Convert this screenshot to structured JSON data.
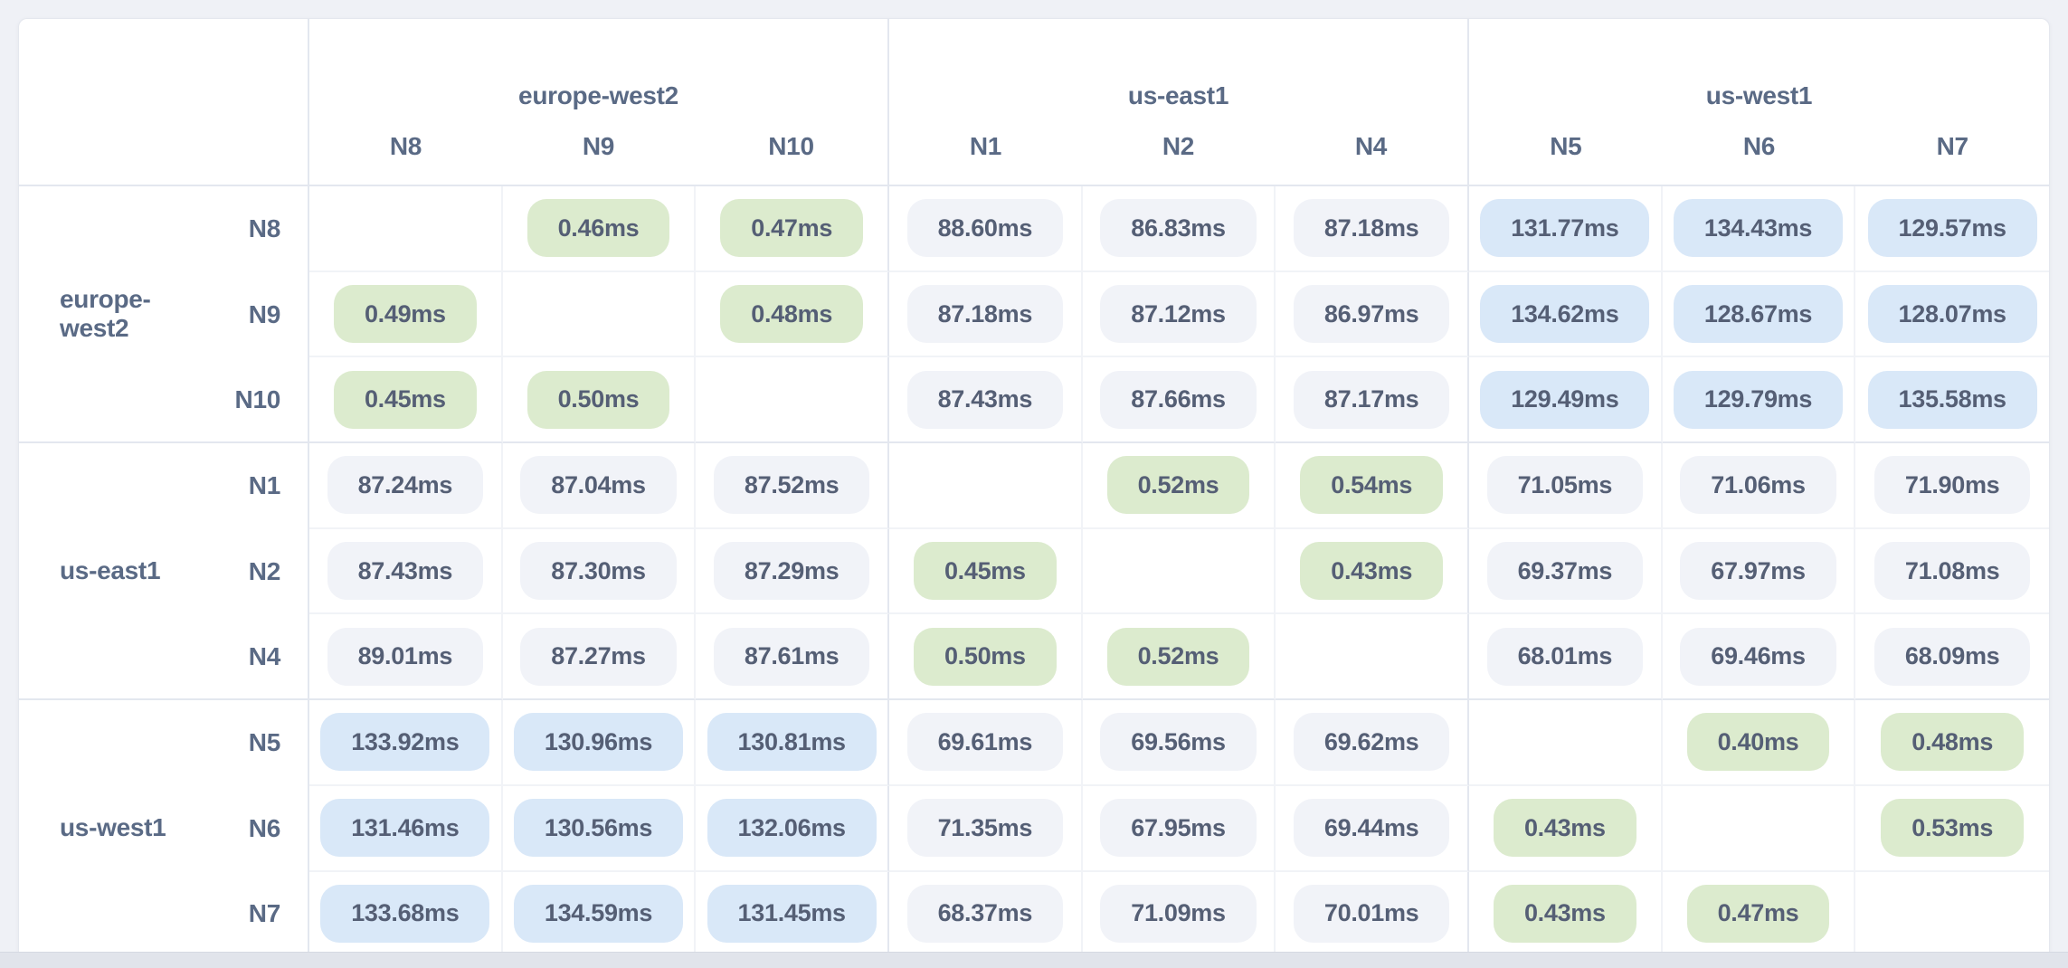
{
  "colors": {
    "page_background": "#eff1f6",
    "bottom_bar": "#e1e4eb",
    "card_background": "#ffffff",
    "card_border": "#e4e7ee",
    "grid_line_light": "#f1f3f7",
    "grid_line_strong": "#e3e7ef",
    "header_text": "#5a6a85",
    "value_text": "#555f75",
    "pill_same_region": "#dcebce",
    "pill_mid_latency": "#f1f3f8",
    "pill_high_latency": "#d9e8f8"
  },
  "chart_data": {
    "type": "heatmap",
    "unit": "ms",
    "column_groups": [
      {
        "region": "europe-west2",
        "nodes": [
          "N8",
          "N9",
          "N10"
        ]
      },
      {
        "region": "us-east1",
        "nodes": [
          "N1",
          "N2",
          "N4"
        ]
      },
      {
        "region": "us-west1",
        "nodes": [
          "N5",
          "N6",
          "N7"
        ]
      }
    ],
    "columns": [
      "N8",
      "N9",
      "N10",
      "N1",
      "N2",
      "N4",
      "N5",
      "N6",
      "N7"
    ],
    "rows": [
      {
        "region": "europe-west2",
        "node": "N8",
        "cells": [
          "",
          "0.46ms",
          "0.47ms",
          "88.60ms",
          "86.83ms",
          "87.18ms",
          "131.77ms",
          "134.43ms",
          "129.57ms"
        ]
      },
      {
        "region": "europe-west2",
        "node": "N9",
        "cells": [
          "0.49ms",
          "",
          "0.48ms",
          "87.18ms",
          "87.12ms",
          "86.97ms",
          "134.62ms",
          "128.67ms",
          "128.07ms"
        ]
      },
      {
        "region": "europe-west2",
        "node": "N10",
        "cells": [
          "0.45ms",
          "0.50ms",
          "",
          "87.43ms",
          "87.66ms",
          "87.17ms",
          "129.49ms",
          "129.79ms",
          "135.58ms"
        ]
      },
      {
        "region": "us-east1",
        "node": "N1",
        "cells": [
          "87.24ms",
          "87.04ms",
          "87.52ms",
          "",
          "0.52ms",
          "0.54ms",
          "71.05ms",
          "71.06ms",
          "71.90ms"
        ]
      },
      {
        "region": "us-east1",
        "node": "N2",
        "cells": [
          "87.43ms",
          "87.30ms",
          "87.29ms",
          "0.45ms",
          "",
          "0.43ms",
          "69.37ms",
          "67.97ms",
          "71.08ms"
        ]
      },
      {
        "region": "us-east1",
        "node": "N4",
        "cells": [
          "89.01ms",
          "87.27ms",
          "87.61ms",
          "0.50ms",
          "0.52ms",
          "",
          "68.01ms",
          "69.46ms",
          "68.09ms"
        ]
      },
      {
        "region": "us-west1",
        "node": "N5",
        "cells": [
          "133.92ms",
          "130.96ms",
          "130.81ms",
          "69.61ms",
          "69.56ms",
          "69.62ms",
          "",
          "0.40ms",
          "0.48ms"
        ]
      },
      {
        "region": "us-west1",
        "node": "N6",
        "cells": [
          "131.46ms",
          "130.56ms",
          "132.06ms",
          "71.35ms",
          "67.95ms",
          "69.44ms",
          "0.43ms",
          "",
          "0.53ms"
        ]
      },
      {
        "region": "us-west1",
        "node": "N7",
        "cells": [
          "133.68ms",
          "134.59ms",
          "131.45ms",
          "68.37ms",
          "71.09ms",
          "70.01ms",
          "0.43ms",
          "0.47ms",
          ""
        ]
      }
    ]
  }
}
